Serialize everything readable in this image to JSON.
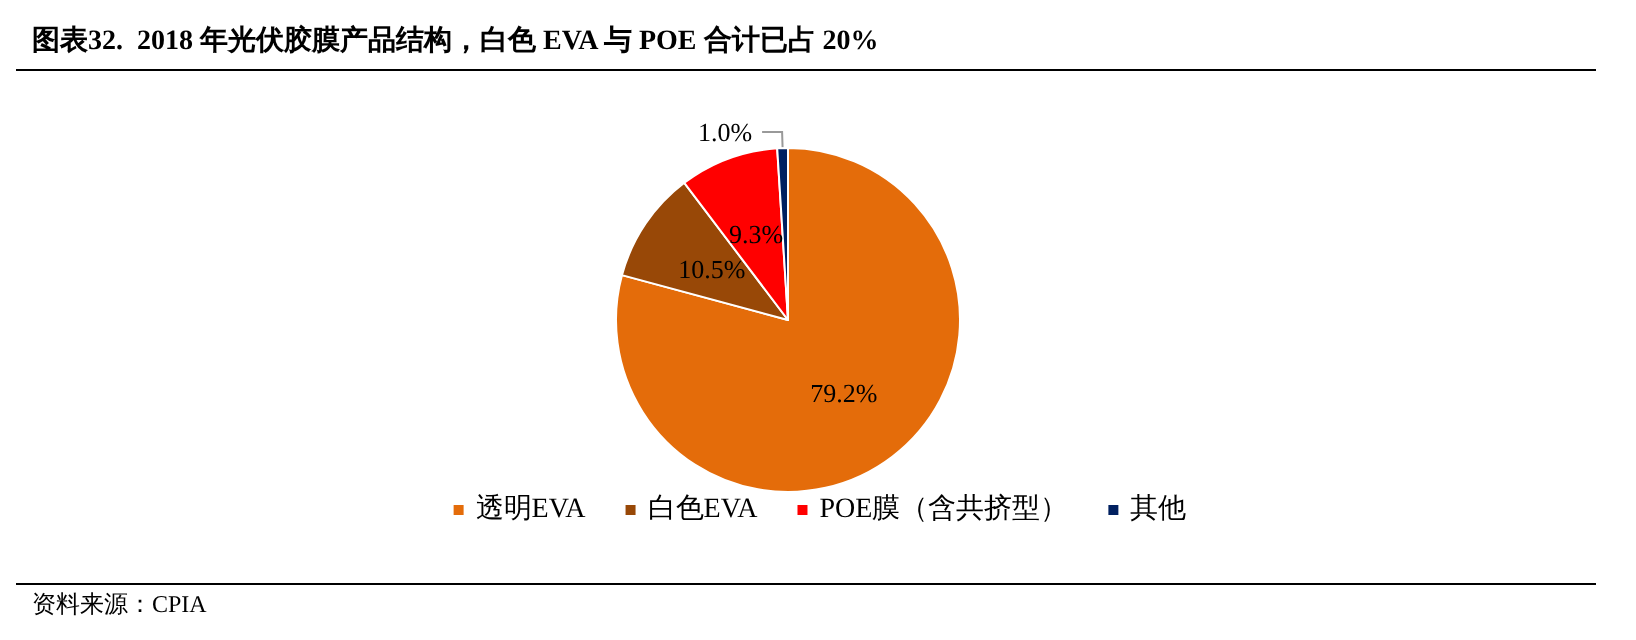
{
  "chart_data": {
    "type": "pie",
    "title": "图表32.  2018 年光伏胶膜产品结构，白色 EVA 与 POE 合计已占 20%",
    "categories": [
      "透明EVA",
      "白色EVA",
      "POE膜（含共挤型）",
      "其他"
    ],
    "values": [
      79.2,
      10.5,
      9.3,
      1.0
    ],
    "colors": [
      "#e46c0a",
      "#984807",
      "#ff0000",
      "#002060"
    ],
    "value_labels": [
      "79.2%",
      "10.5%",
      "9.3%",
      "1.0%"
    ],
    "legend": "bottom",
    "annotations": [
      "资料来源：CPIA"
    ]
  }
}
